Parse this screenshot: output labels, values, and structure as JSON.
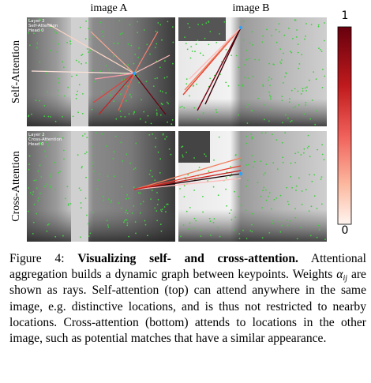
{
  "figure": {
    "column_labels": [
      "image A",
      "image B"
    ],
    "row_labels": [
      "Self-Attention",
      "Cross-Attention"
    ],
    "overlays": [
      {
        "lines": [
          "Layer 2",
          "Self-Attention",
          "Head 0"
        ]
      },
      {
        "lines": [
          "Layer 2",
          "Cross-Attention",
          "Head 0"
        ]
      }
    ],
    "colorbar": {
      "max": 1,
      "min": 0
    }
  },
  "caption": {
    "label": "Figure 4:",
    "bold": "Visualizing self- and cross-attention.",
    "text_before": "Attentional aggregation builds a dynamic graph between keypoints. Weights",
    "math_symbol": "α",
    "math_subscript": "ij",
    "text_after": "are shown as rays. Self-attention (top) can attend anywhere in the same image, e.g. distinctive locations, and is thus not restricted to nearby locations. Cross-attention (bottom) attends to locations in the other image, such as potential matches that have a similar appearance."
  }
}
